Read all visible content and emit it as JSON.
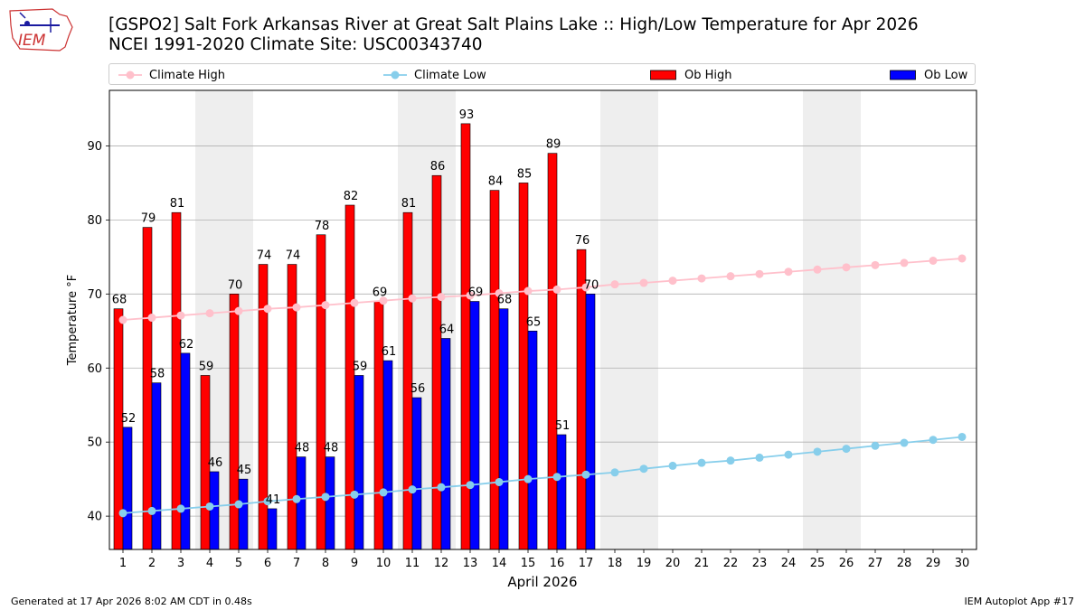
{
  "logo": {
    "text": "IEM"
  },
  "title": {
    "line1": "[GSPO2] Salt Fork Arkansas River at Great Salt Plains Lake :: High/Low Temperature for Apr 2026",
    "line2": "NCEI 1991-2020 Climate Site: USC00343740"
  },
  "legend": {
    "climate_high": "Climate High",
    "climate_low": "Climate Low",
    "ob_high": "Ob High",
    "ob_low": "Ob Low"
  },
  "footer": {
    "generated": "Generated at 17 Apr 2026 8:02 AM CDT in 0.48s",
    "app": "IEM Autoplot App #17"
  },
  "colors": {
    "ob_high": "#ff0000",
    "ob_low": "#0000ff",
    "climate_high": "#ffc0cb",
    "climate_low": "#87ceeb",
    "weekend_shade": "#eeeeee",
    "grid": "#b0b0b0"
  },
  "chart_data": {
    "type": "bar",
    "title": "[GSPO2] Salt Fork Arkansas River at Great Salt Plains Lake :: High/Low Temperature for Apr 2026",
    "subtitle": "NCEI 1991-2020 Climate Site: USC00343740",
    "xlabel": "April 2026",
    "ylabel": "Temperature °F",
    "ylim": [
      35.5,
      97.5
    ],
    "yticks": [
      40,
      50,
      60,
      70,
      80,
      90
    ],
    "grid": true,
    "legend_position": "top",
    "days": [
      1,
      2,
      3,
      4,
      5,
      6,
      7,
      8,
      9,
      10,
      11,
      12,
      13,
      14,
      15,
      16,
      17,
      18,
      19,
      20,
      21,
      22,
      23,
      24,
      25,
      26,
      27,
      28,
      29,
      30
    ],
    "weekend_days": [
      4,
      5,
      11,
      12,
      18,
      19,
      25,
      26
    ],
    "series": [
      {
        "name": "Ob High",
        "type": "bar",
        "values": [
          68,
          79,
          81,
          59,
          70,
          74,
          74,
          78,
          82,
          69,
          81,
          86,
          93,
          84,
          85,
          89,
          76
        ]
      },
      {
        "name": "Ob Low",
        "type": "bar",
        "values": [
          52,
          58,
          62,
          46,
          45,
          41,
          48,
          48,
          59,
          61,
          56,
          64,
          69,
          68,
          65,
          51,
          70
        ]
      },
      {
        "name": "Climate High",
        "type": "line",
        "values": [
          66.5,
          66.8,
          67.1,
          67.4,
          67.7,
          68.0,
          68.2,
          68.5,
          68.8,
          69.1,
          69.4,
          69.6,
          69.8,
          70.1,
          70.4,
          70.6,
          70.9,
          71.3,
          71.5,
          71.8,
          72.1,
          72.4,
          72.7,
          73.0,
          73.3,
          73.6,
          73.9,
          74.2,
          74.5,
          74.8
        ]
      },
      {
        "name": "Climate Low",
        "type": "line",
        "values": [
          40.4,
          40.7,
          41.0,
          41.3,
          41.6,
          42.0,
          42.3,
          42.6,
          42.9,
          43.2,
          43.6,
          43.9,
          44.2,
          44.6,
          45.0,
          45.3,
          45.6,
          45.9,
          46.4,
          46.8,
          47.2,
          47.5,
          47.9,
          48.3,
          48.7,
          49.1,
          49.5,
          49.9,
          50.3,
          50.7
        ]
      }
    ]
  }
}
